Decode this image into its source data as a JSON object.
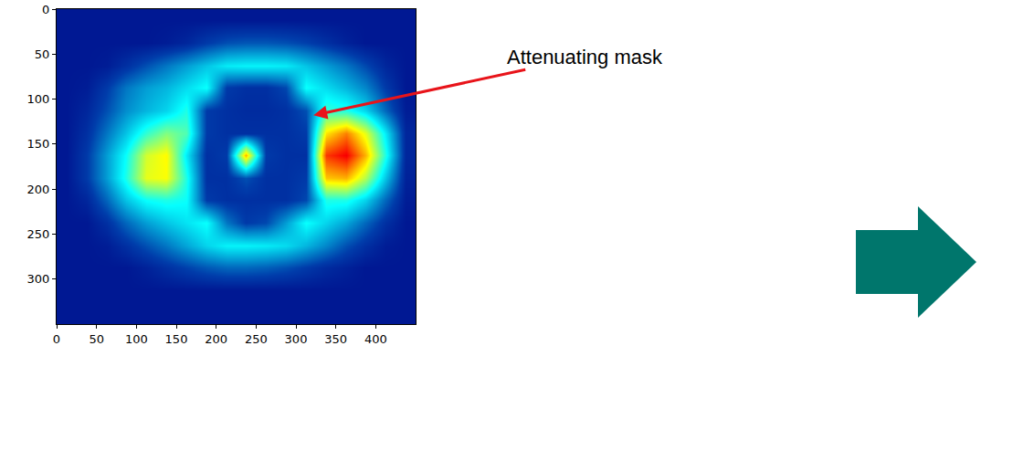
{
  "chart_data": {
    "type": "heatmap",
    "color": "jet",
    "x": [
      12.5,
      37.5,
      62.5,
      87.5,
      112.5,
      137.5,
      162.5,
      187.5,
      212.5,
      237.5,
      262.5,
      287.5,
      312.5,
      337.5,
      362.5,
      387.5,
      412.5,
      437.5
    ],
    "y": [
      12.5,
      37.5,
      62.5,
      87.5,
      112.5,
      137.5,
      162.5,
      187.5,
      212.5,
      237.5,
      262.5,
      287.5,
      312.5,
      337.5
    ],
    "z": [
      [
        0.05,
        0.05,
        0.05,
        0.05,
        0.05,
        0.05,
        0.05,
        0.05,
        0.05,
        0.05,
        0.05,
        0.05,
        0.05,
        0.05,
        0.05,
        0.05,
        0.05,
        0.05
      ],
      [
        0.05,
        0.05,
        0.05,
        0.05,
        0.05,
        0.06,
        0.08,
        0.12,
        0.15,
        0.16,
        0.16,
        0.15,
        0.13,
        0.1,
        0.07,
        0.05,
        0.05,
        0.05
      ],
      [
        0.05,
        0.05,
        0.06,
        0.1,
        0.15,
        0.2,
        0.25,
        0.3,
        0.35,
        0.36,
        0.36,
        0.35,
        0.3,
        0.25,
        0.2,
        0.14,
        0.08,
        0.05
      ],
      [
        0.05,
        0.06,
        0.12,
        0.2,
        0.25,
        0.28,
        0.33,
        0.38,
        0.12,
        0.1,
        0.1,
        0.14,
        0.38,
        0.33,
        0.28,
        0.22,
        0.12,
        0.05
      ],
      [
        0.05,
        0.08,
        0.15,
        0.23,
        0.28,
        0.32,
        0.4,
        0.12,
        0.1,
        0.09,
        0.09,
        0.1,
        0.15,
        0.42,
        0.4,
        0.32,
        0.18,
        0.06
      ],
      [
        0.05,
        0.1,
        0.2,
        0.3,
        0.42,
        0.5,
        0.45,
        0.12,
        0.1,
        0.1,
        0.1,
        0.1,
        0.12,
        0.65,
        0.75,
        0.6,
        0.35,
        0.08
      ],
      [
        0.05,
        0.12,
        0.25,
        0.38,
        0.58,
        0.63,
        0.35,
        0.1,
        0.12,
        0.7,
        0.12,
        0.1,
        0.1,
        0.82,
        0.88,
        0.7,
        0.4,
        0.08
      ],
      [
        0.05,
        0.12,
        0.25,
        0.4,
        0.6,
        0.62,
        0.4,
        0.1,
        0.1,
        0.15,
        0.1,
        0.1,
        0.12,
        0.68,
        0.7,
        0.55,
        0.3,
        0.07
      ],
      [
        0.05,
        0.08,
        0.18,
        0.3,
        0.38,
        0.4,
        0.38,
        0.12,
        0.1,
        0.1,
        0.1,
        0.1,
        0.14,
        0.4,
        0.4,
        0.32,
        0.18,
        0.06
      ],
      [
        0.05,
        0.05,
        0.1,
        0.18,
        0.25,
        0.3,
        0.34,
        0.38,
        0.2,
        0.12,
        0.14,
        0.25,
        0.38,
        0.32,
        0.26,
        0.18,
        0.1,
        0.05
      ],
      [
        0.05,
        0.05,
        0.06,
        0.1,
        0.15,
        0.2,
        0.26,
        0.32,
        0.36,
        0.36,
        0.35,
        0.33,
        0.28,
        0.22,
        0.15,
        0.1,
        0.06,
        0.05
      ],
      [
        0.05,
        0.05,
        0.05,
        0.05,
        0.07,
        0.1,
        0.13,
        0.16,
        0.18,
        0.18,
        0.17,
        0.15,
        0.12,
        0.09,
        0.07,
        0.05,
        0.05,
        0.05
      ],
      [
        0.05,
        0.05,
        0.05,
        0.05,
        0.05,
        0.05,
        0.05,
        0.05,
        0.05,
        0.05,
        0.05,
        0.05,
        0.05,
        0.05,
        0.05,
        0.05,
        0.05,
        0.05
      ],
      [
        0.05,
        0.05,
        0.05,
        0.05,
        0.05,
        0.05,
        0.05,
        0.05,
        0.05,
        0.05,
        0.05,
        0.05,
        0.05,
        0.05,
        0.05,
        0.05,
        0.05,
        0.05
      ]
    ],
    "zlim": [
      0,
      1
    ],
    "xlim": [
      0,
      450
    ],
    "ylim": [
      350,
      0
    ],
    "xticks": [
      0,
      50,
      100,
      150,
      200,
      250,
      300,
      350,
      400
    ],
    "yticks": [
      0,
      50,
      100,
      150,
      200,
      250,
      300
    ],
    "annotations": [
      {
        "text": "Attenuating mask",
        "x": 322,
        "y": 118
      }
    ]
  }
}
